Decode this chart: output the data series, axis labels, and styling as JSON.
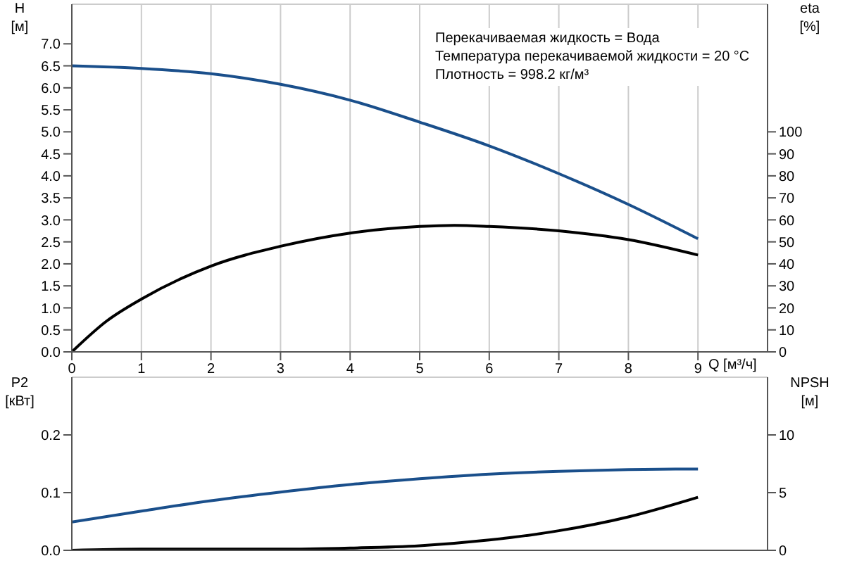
{
  "chart_data": [
    {
      "type": "line",
      "xlabel": "Q [м³/ч]",
      "ylabel": "H [м]",
      "y2label": "eta [%]",
      "annotations": [
        "Перекачиваемая жидкость = Вода",
        "Температура перекачиваемой жидкости = 20 °C",
        "Плотность = 998.2 кг/м³"
      ],
      "xlim": [
        0,
        10
      ],
      "xticks": [
        0,
        1,
        2,
        3,
        4,
        5,
        6,
        7,
        8,
        9
      ],
      "ylim": [
        0,
        7.9
      ],
      "yticks": [
        {
          "value": 0,
          "label": "0.0"
        },
        {
          "value": 0.5,
          "label": "0.5"
        },
        {
          "value": 1,
          "label": "1.0"
        },
        {
          "value": 1.5,
          "label": "1.5"
        },
        {
          "value": 2,
          "label": "2.0"
        },
        {
          "value": 2.5,
          "label": "2.5"
        },
        {
          "value": 3,
          "label": "3.0"
        },
        {
          "value": 3.5,
          "label": "3.5"
        },
        {
          "value": 4,
          "label": "4.0"
        },
        {
          "value": 4.5,
          "label": "4.5"
        },
        {
          "value": 5,
          "label": "5.0"
        },
        {
          "value": 5.5,
          "label": "5.5"
        },
        {
          "value": 6,
          "label": "6.0"
        },
        {
          "value": 6.5,
          "label": "6.5"
        },
        {
          "value": 7,
          "label": "7.0"
        }
      ],
      "y2lim": [
        0,
        158
      ],
      "y2ticks": [
        0,
        10,
        20,
        30,
        40,
        50,
        60,
        70,
        80,
        90,
        100
      ],
      "grid": true,
      "marker": "none",
      "line_style": "solid",
      "series": [
        {
          "color": "#1a4f8b",
          "x": [
            0,
            1,
            2,
            3,
            4,
            5,
            6,
            7,
            8,
            9
          ],
          "values": [
            6.5,
            6.44,
            6.32,
            6.08,
            5.72,
            5.22,
            4.68,
            4.05,
            3.35,
            2.57
          ]
        },
        {
          "color": "#000000",
          "axis": "y2",
          "x": [
            0,
            0.5,
            1,
            2,
            3,
            4,
            5,
            5.5,
            6,
            7,
            8,
            9
          ],
          "values": [
            0,
            14,
            24,
            39,
            48,
            54,
            57,
            57.5,
            57,
            55,
            51,
            44
          ]
        }
      ]
    },
    {
      "type": "line",
      "ylabel": "P2 [кВт]",
      "y2label": "NPSH [м]",
      "xlim": [
        0,
        10
      ],
      "xticks": [
        0,
        1,
        2,
        3,
        4,
        5,
        6,
        7,
        8,
        9
      ],
      "tick_labels": "y",
      "ylim": [
        0,
        0.3
      ],
      "yticks": [
        {
          "value": 0,
          "label": "0.0"
        },
        0.1,
        0.2
      ],
      "y2lim": [
        0,
        15
      ],
      "y2ticks": [
        0,
        5,
        10
      ],
      "grid": true,
      "marker": "none",
      "line_style": "solid",
      "series": [
        {
          "color": "#1a4f8b",
          "x": [
            0,
            1,
            2,
            3,
            4,
            5,
            6,
            7,
            8,
            9
          ],
          "values": [
            0.049,
            0.068,
            0.086,
            0.101,
            0.114,
            0.124,
            0.132,
            0.137,
            0.14,
            0.141
          ]
        },
        {
          "color": "#000000",
          "axis": "y2",
          "x": [
            0,
            1,
            2,
            3,
            4,
            5,
            6,
            7,
            8,
            9
          ],
          "values": [
            0,
            0.1,
            0.1,
            0.1,
            0.2,
            0.4,
            0.9,
            1.7,
            2.9,
            4.6
          ]
        }
      ]
    }
  ]
}
